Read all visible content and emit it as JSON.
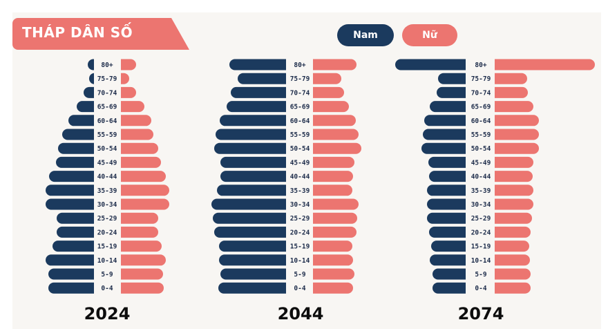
{
  "colors": {
    "male": "#1b3a5e",
    "female": "#ec7570",
    "title_bg": "#ec7570",
    "background": "#f8f6f3"
  },
  "header": {
    "title": "THÁP DÂN SỐ"
  },
  "legend": {
    "male_label": "Nam",
    "female_label": "Nữ"
  },
  "chart_data": {
    "type": "bar",
    "title": "THÁP DÂN SỐ",
    "age_groups": [
      "80+",
      "75-79",
      "70-74",
      "65-69",
      "60-64",
      "55-59",
      "50-54",
      "45-49",
      "40-44",
      "35-39",
      "30-34",
      "25-29",
      "20-24",
      "15-19",
      "10-14",
      "5-9",
      "0-4"
    ],
    "legend": [
      "Nam",
      "Nữ"
    ],
    "pyramids": [
      {
        "year": "2024",
        "male": [
          9,
          7,
          15,
          25,
          37,
          46,
          52,
          55,
          65,
          70,
          70,
          54,
          54,
          60,
          70,
          66,
          66
        ],
        "female": [
          22,
          12,
          22,
          34,
          44,
          47,
          54,
          58,
          65,
          70,
          70,
          54,
          54,
          59,
          65,
          61,
          62
        ]
      },
      {
        "year": "2044",
        "male": [
          82,
          70,
          80,
          86,
          96,
          102,
          104,
          95,
          95,
          100,
          108,
          106,
          104,
          97,
          97,
          95,
          98
        ],
        "female": [
          63,
          41,
          45,
          52,
          62,
          66,
          70,
          60,
          58,
          57,
          66,
          64,
          63,
          57,
          58,
          60,
          58
        ]
      },
      {
        "year": "2074",
        "male": [
          102,
          40,
          42,
          52,
          60,
          62,
          64,
          54,
          53,
          56,
          56,
          56,
          53,
          50,
          52,
          48,
          48
        ],
        "female": [
          145,
          47,
          48,
          56,
          64,
          64,
          64,
          56,
          55,
          56,
          56,
          54,
          52,
          50,
          51,
          52,
          52
        ]
      }
    ]
  }
}
